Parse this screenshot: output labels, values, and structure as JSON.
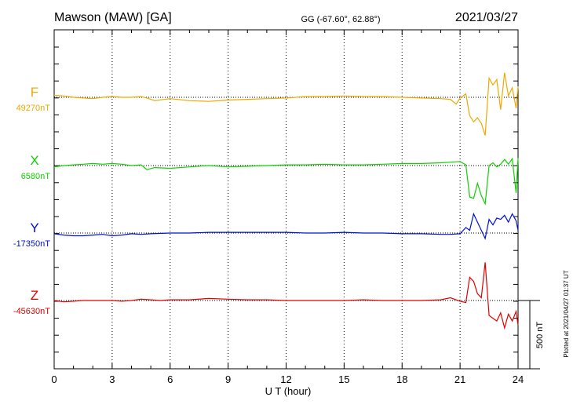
{
  "header": {
    "station": "Mawson (MAW)  [GA]",
    "coords": "GG (-67.60°,  62.88°)",
    "date": "2021/03/27"
  },
  "plotted_note": "Plotted at 2021/04/27 01:37 UT",
  "scale_label": "500 nT",
  "chart_data": {
    "type": "line",
    "xlabel": "U T (hour)",
    "xlim": [
      0,
      24
    ],
    "x_ticks": [
      "0",
      "3",
      "6",
      "9",
      "12",
      "15",
      "18",
      "21",
      "24"
    ],
    "scale_bar_nT": 500,
    "grid": "vertical dotted at 3-hour intervals",
    "series": [
      {
        "name": "F",
        "baseline_label": "49270nT",
        "baseline_nT": 49270,
        "color": "#f0a800",
        "x": [
          0,
          0.5,
          1,
          1.5,
          2,
          2.5,
          3,
          3.5,
          4,
          4.5,
          4.8,
          5.2,
          6,
          7,
          8,
          9,
          10,
          11,
          12,
          13,
          14,
          15,
          16,
          17,
          18,
          19,
          20,
          20.5,
          20.8,
          21,
          21.3,
          21.5,
          21.7,
          21.9,
          22.1,
          22.3,
          22.5,
          22.7,
          22.9,
          23.1,
          23.3,
          23.5,
          23.7,
          23.9,
          24
        ],
        "values": [
          15,
          10,
          0,
          -5,
          -10,
          0,
          5,
          0,
          0,
          5,
          -5,
          -25,
          -10,
          -25,
          -30,
          -20,
          -15,
          -10,
          -5,
          5,
          5,
          10,
          5,
          5,
          0,
          -5,
          -10,
          -15,
          -50,
          -5,
          25,
          -135,
          -180,
          -150,
          -190,
          -280,
          140,
          90,
          130,
          -90,
          180,
          10,
          70,
          -80,
          80
        ]
      },
      {
        "name": "X",
        "baseline_label": "6580nT",
        "baseline_nT": 6580,
        "color": "#10d000",
        "x": [
          0,
          0.5,
          1,
          1.5,
          2,
          2.5,
          3,
          3.5,
          4,
          4.5,
          4.8,
          5.2,
          6,
          7,
          8,
          9,
          10,
          11,
          12,
          13,
          14,
          15,
          16,
          17,
          18,
          19,
          20,
          20.5,
          21,
          21.3,
          21.5,
          21.7,
          21.9,
          22.1,
          22.3,
          22.5,
          22.7,
          22.9,
          23.1,
          23.3,
          23.5,
          23.7,
          23.9,
          24
        ],
        "values": [
          -10,
          0,
          5,
          10,
          15,
          10,
          15,
          10,
          0,
          5,
          -30,
          -15,
          -20,
          -10,
          0,
          -10,
          -5,
          0,
          5,
          5,
          10,
          5,
          5,
          10,
          15,
          15,
          20,
          25,
          30,
          5,
          -230,
          -240,
          -130,
          -220,
          -280,
          0,
          20,
          -10,
          10,
          45,
          10,
          50,
          -200,
          55
        ]
      },
      {
        "name": "Y",
        "baseline_label": "-17350nT",
        "baseline_nT": -17350,
        "color": "#0010d8",
        "x": [
          0,
          0.5,
          1,
          1.5,
          2,
          2.5,
          3,
          3.5,
          4,
          4.5,
          5,
          6,
          7,
          8,
          9,
          10,
          11,
          12,
          13,
          14,
          15,
          16,
          17,
          18,
          19,
          20,
          20.5,
          21,
          21.3,
          21.5,
          21.7,
          21.9,
          22.1,
          22.3,
          22.5,
          22.7,
          22.9,
          23.1,
          23.3,
          23.5,
          23.7,
          23.9,
          24
        ],
        "values": [
          -5,
          -15,
          -20,
          -20,
          -15,
          -10,
          -20,
          -15,
          -5,
          -10,
          -5,
          0,
          0,
          5,
          5,
          5,
          5,
          5,
          0,
          0,
          5,
          0,
          0,
          -5,
          -5,
          -10,
          -10,
          -5,
          40,
          20,
          140,
          80,
          20,
          -40,
          100,
          60,
          110,
          100,
          130,
          80,
          140,
          90,
          20
        ]
      },
      {
        "name": "Z",
        "baseline_label": "-45630nT",
        "baseline_nT": -45630,
        "color": "#e00000",
        "x": [
          0,
          0.5,
          1,
          1.5,
          2,
          2.5,
          3,
          3.5,
          4,
          4.5,
          5,
          5.5,
          6,
          7,
          8,
          9,
          10,
          11,
          12,
          13,
          14,
          15,
          16,
          17,
          18,
          19,
          20,
          20.5,
          21,
          21.3,
          21.5,
          21.7,
          21.9,
          22.1,
          22.3,
          22.5,
          22.7,
          22.9,
          23.1,
          23.3,
          23.5,
          23.7,
          23.9,
          24
        ],
        "values": [
          0,
          -10,
          -5,
          0,
          0,
          0,
          0,
          -5,
          0,
          10,
          5,
          0,
          5,
          5,
          15,
          10,
          5,
          5,
          0,
          0,
          0,
          0,
          5,
          0,
          0,
          0,
          5,
          20,
          -5,
          -15,
          170,
          140,
          50,
          20,
          280,
          -110,
          -130,
          -150,
          -90,
          -200,
          -100,
          -150,
          -80,
          -180
        ]
      }
    ]
  }
}
